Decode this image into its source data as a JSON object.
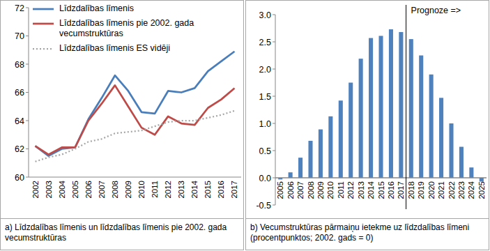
{
  "chart_data": [
    {
      "type": "line",
      "title": "a) Līdzdalības līmenis un līdzdalības līmenis pie 2002. gada vecumstruktūras",
      "categories": [
        "2002",
        "2003",
        "2004",
        "2005",
        "2006",
        "2007",
        "2008",
        "2009",
        "2010",
        "2011",
        "2012",
        "2013",
        "2014",
        "2015",
        "2016",
        "2017"
      ],
      "series": [
        {
          "name": "Līdzdalības līmenis",
          "color": "#4a7ebb",
          "line_style": "solid",
          "values": [
            62.2,
            61.5,
            62.0,
            62.1,
            64.1,
            65.6,
            67.2,
            66.1,
            64.6,
            64.5,
            66.1,
            66.0,
            66.3,
            67.5,
            68.2,
            68.9
          ]
        },
        {
          "name": "Līdzdalības līmenis pie 2002. gada vecumstruktūras",
          "color": "#be4b48",
          "line_style": "solid",
          "values": [
            62.2,
            61.6,
            62.1,
            62.1,
            64.0,
            65.2,
            66.5,
            65.0,
            63.5,
            63.0,
            64.3,
            63.8,
            63.7,
            64.9,
            65.5,
            66.3
          ]
        },
        {
          "name": "Līdzdalības līmenis ES vidēji",
          "color": "#a6a6a6",
          "line_style": "dotted",
          "values": [
            61.1,
            61.4,
            61.6,
            62.0,
            62.5,
            62.7,
            63.1,
            63.2,
            63.3,
            63.6,
            63.9,
            64.0,
            64.0,
            64.2,
            64.4,
            64.7
          ]
        }
      ],
      "ylim": [
        60,
        72
      ],
      "yticks": [
        60,
        62,
        64,
        66,
        68,
        70,
        72
      ],
      "grid": false,
      "legend": "upper left"
    },
    {
      "type": "bar",
      "title": "b) Vecumstruktūras pārmaiņu ietekme uz līdzdalības līmeni (procentpunktos; 2002. gads = 0)",
      "categories": [
        "2005",
        "2006",
        "2007",
        "2008",
        "2009",
        "2010",
        "2011",
        "2012",
        "2013",
        "2014",
        "2015",
        "2016",
        "2017",
        "2018",
        "2019",
        "2020",
        "2021",
        "2022",
        "2023",
        "2024",
        "2025"
      ],
      "values": [
        -0.03,
        0.1,
        0.37,
        0.68,
        0.89,
        1.13,
        1.42,
        1.75,
        2.19,
        2.57,
        2.61,
        2.73,
        2.68,
        2.55,
        2.25,
        1.9,
        1.47,
        1.0,
        0.57,
        0.19,
        -0.07
      ],
      "color": "#4f81bd",
      "ylim": [
        -0.5,
        3.0
      ],
      "yticks": [
        -0.5,
        {
          "value": 0,
          "label": "0.0"
        },
        0.5,
        {
          "value": 1,
          "label": "1.0"
        },
        1.5,
        {
          "value": 2,
          "label": "2.0"
        },
        2.5,
        {
          "value": 3,
          "label": "3.0"
        }
      ],
      "grid": false,
      "annotations": [
        {
          "text": "Prognoze =>",
          "x": "2018"
        }
      ]
    }
  ]
}
